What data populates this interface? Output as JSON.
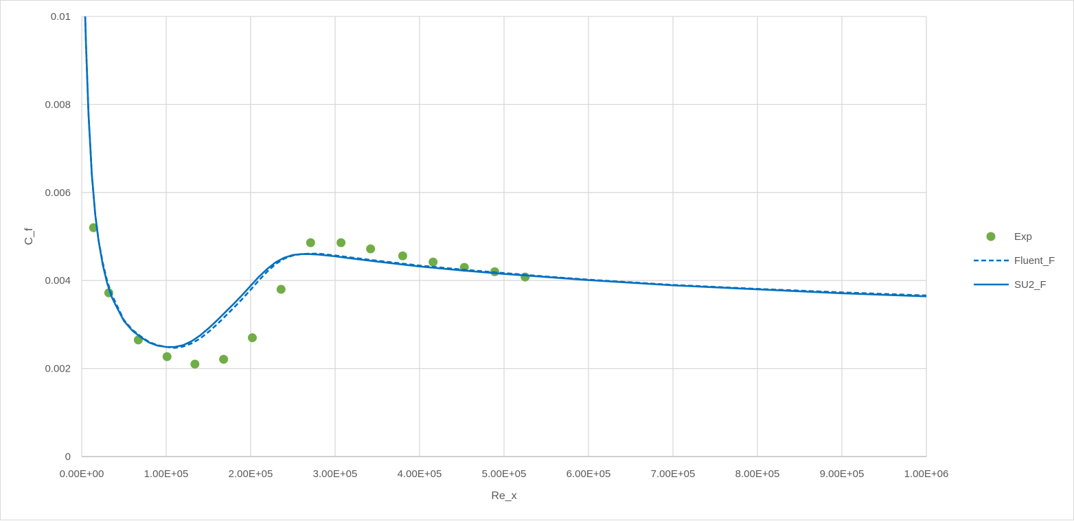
{
  "chart_data": {
    "type": "scatter",
    "xlabel": "Re_x",
    "ylabel": "C_f",
    "xlim": [
      0,
      1000000
    ],
    "ylim": [
      0,
      0.01
    ],
    "x_ticks": [
      0,
      100000,
      200000,
      300000,
      400000,
      500000,
      600000,
      700000,
      800000,
      900000,
      1000000
    ],
    "x_tick_labels": [
      "0.00E+00",
      "1.00E+05",
      "2.00E+05",
      "3.00E+05",
      "4.00E+05",
      "5.00E+05",
      "6.00E+05",
      "7.00E+05",
      "8.00E+05",
      "9.00E+05",
      "1.00E+06"
    ],
    "y_ticks": [
      0,
      0.002,
      0.004,
      0.006,
      0.008,
      0.01
    ],
    "y_tick_labels": [
      "0",
      "0.002",
      "0.004",
      "0.006",
      "0.008",
      "0.01"
    ],
    "grid": true,
    "legend_position": "right",
    "series": [
      {
        "name": "Exp",
        "style": "markers",
        "color": "#70ad47",
        "x": [
          14000,
          32000,
          67000,
          101000,
          134000,
          168000,
          202000,
          236000,
          271000,
          307000,
          342000,
          380000,
          416000,
          453000,
          489000,
          525000
        ],
        "y": [
          0.0052,
          0.00372,
          0.00265,
          0.00227,
          0.0021,
          0.00221,
          0.0027,
          0.0038,
          0.00486,
          0.00486,
          0.00472,
          0.00456,
          0.00442,
          0.0043,
          0.0042,
          0.00408
        ]
      },
      {
        "name": "Fluent_F",
        "style": "dashed-line",
        "color": "#0070c0",
        "x": [
          3500,
          5000,
          8000,
          12000,
          16000,
          20000,
          25000,
          30000,
          35000,
          40000,
          50000,
          60000,
          70000,
          80000,
          90000,
          100000,
          110000,
          120000,
          130000,
          140000,
          150000,
          160000,
          170000,
          180000,
          190000,
          200000,
          210000,
          220000,
          230000,
          240000,
          250000,
          260000,
          270000,
          280000,
          300000,
          320000,
          350000,
          400000,
          450000,
          500000,
          550000,
          600000,
          700000,
          800000,
          900000,
          1000000
        ],
        "y": [
          0.0104,
          0.0094,
          0.0078,
          0.0064,
          0.0055,
          0.0049,
          0.0044,
          0.004,
          0.0037,
          0.0035,
          0.0031,
          0.00288,
          0.00273,
          0.0026,
          0.00253,
          0.00249,
          0.00247,
          0.0025,
          0.00257,
          0.00268,
          0.00283,
          0.003,
          0.00319,
          0.00338,
          0.00358,
          0.00379,
          0.00401,
          0.00421,
          0.00438,
          0.0045,
          0.00457,
          0.0046,
          0.00461,
          0.00461,
          0.00457,
          0.00452,
          0.00445,
          0.00434,
          0.00425,
          0.00417,
          0.00409,
          0.00402,
          0.0039,
          0.00381,
          0.00373,
          0.00366
        ]
      },
      {
        "name": "SU2_F",
        "style": "solid-line",
        "color": "#0070c0",
        "x": [
          3500,
          5000,
          8000,
          12000,
          16000,
          20000,
          25000,
          30000,
          35000,
          40000,
          50000,
          60000,
          70000,
          80000,
          90000,
          100000,
          110000,
          120000,
          130000,
          140000,
          150000,
          160000,
          170000,
          180000,
          190000,
          200000,
          210000,
          220000,
          230000,
          240000,
          250000,
          260000,
          270000,
          280000,
          300000,
          320000,
          350000,
          400000,
          450000,
          500000,
          550000,
          600000,
          700000,
          800000,
          900000,
          1000000
        ],
        "y": [
          0.0104,
          0.0094,
          0.0078,
          0.0064,
          0.0055,
          0.0049,
          0.00435,
          0.00395,
          0.00365,
          0.00345,
          0.00308,
          0.00286,
          0.00271,
          0.00259,
          0.00252,
          0.00249,
          0.00249,
          0.00253,
          0.00262,
          0.00275,
          0.00291,
          0.00309,
          0.00328,
          0.00347,
          0.00367,
          0.00388,
          0.00409,
          0.00427,
          0.00442,
          0.00452,
          0.00458,
          0.0046,
          0.0046,
          0.00459,
          0.00455,
          0.0045,
          0.00443,
          0.00432,
          0.00423,
          0.00415,
          0.00408,
          0.00401,
          0.00389,
          0.0038,
          0.00371,
          0.00364
        ]
      }
    ]
  }
}
